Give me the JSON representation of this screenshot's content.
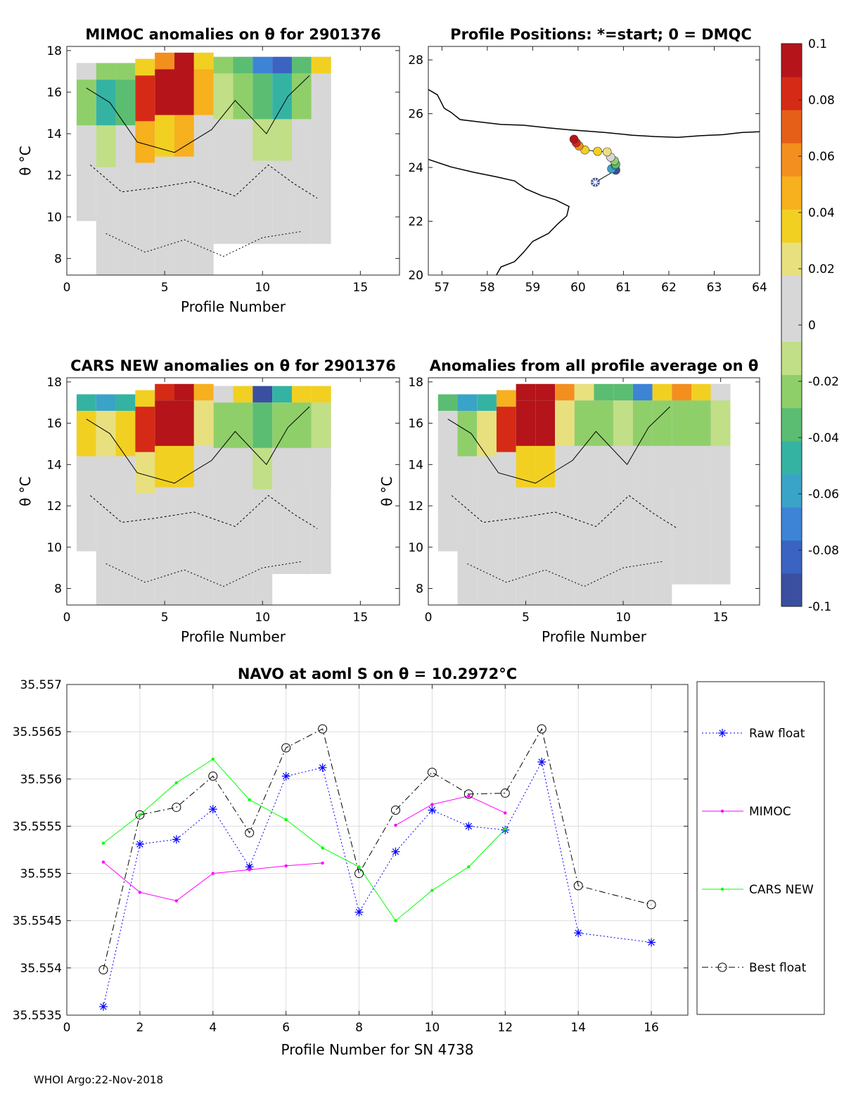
{
  "footer": "WHOI Argo:22-Nov-2018",
  "colorbar": {
    "colors": [
      "#3b4fa0",
      "#3a63c2",
      "#3d83d6",
      "#3aa3c8",
      "#34b3a3",
      "#5bbd72",
      "#8fcf6a",
      "#c1df86",
      "#d7d7d7",
      "#d7d7d7",
      "#e8e07e",
      "#f2d021",
      "#f7b01e",
      "#f38f1e",
      "#e65f18",
      "#d52b16",
      "#b4141a"
    ],
    "tick_labels": [
      "0.1",
      "0.08",
      "0.06",
      "0.04",
      "0.02",
      "0",
      "-0.02",
      "-0.04",
      "-0.06",
      "-0.08",
      "-0.1"
    ]
  },
  "chart_data": [
    {
      "type": "heatmap",
      "title": "MIMOC anomalies on θ  for 2901376",
      "xlabel": "Profile Number",
      "ylabel": "θ °C",
      "xlim": [
        0,
        17
      ],
      "ylim": [
        7.2,
        18.2
      ],
      "xticks": [
        "0",
        "5",
        "10",
        "15"
      ],
      "yticks": [
        "8",
        "10",
        "12",
        "14",
        "16",
        "18"
      ],
      "columns": [
        {
          "x": 1,
          "top": 17.4,
          "bottom": 9.8,
          "anom": [
            0.0,
            -0.02,
            0.0
          ]
        },
        {
          "x": 2,
          "top": 17.4,
          "bottom": 7.2,
          "anom": [
            -0.02,
            -0.05,
            -0.01
          ]
        },
        {
          "x": 3,
          "top": 17.4,
          "bottom": 7.2,
          "anom": [
            -0.02,
            -0.04,
            0.0
          ]
        },
        {
          "x": 4,
          "top": 17.6,
          "bottom": 7.2,
          "anom": [
            0.03,
            0.08,
            0.05
          ]
        },
        {
          "x": 5,
          "top": 17.9,
          "bottom": 7.2,
          "anom": [
            0.06,
            0.09,
            0.04
          ]
        },
        {
          "x": 6,
          "top": 17.9,
          "bottom": 7.2,
          "anom": [
            0.1,
            0.1,
            0.05
          ]
        },
        {
          "x": 7,
          "top": 17.9,
          "bottom": 7.2,
          "anom": [
            0.04,
            0.05,
            0.0
          ]
        },
        {
          "x": 8,
          "top": 17.7,
          "bottom": 8.7,
          "anom": [
            -0.02,
            -0.01,
            0.0
          ]
        },
        {
          "x": 9,
          "top": 17.7,
          "bottom": 8.7,
          "anom": [
            -0.03,
            -0.02,
            0.0
          ]
        },
        {
          "x": 10,
          "top": 17.7,
          "bottom": 8.7,
          "anom": [
            -0.07,
            -0.04,
            -0.01
          ]
        },
        {
          "x": 11,
          "top": 17.7,
          "bottom": 8.7,
          "anom": [
            -0.08,
            -0.05,
            -0.01
          ]
        },
        {
          "x": 12,
          "top": 17.7,
          "bottom": 8.7,
          "anom": [
            -0.04,
            -0.02,
            0.0
          ]
        },
        {
          "x": 13,
          "top": 17.7,
          "bottom": 8.7,
          "anom": [
            0.03,
            0.0,
            0.0
          ]
        }
      ]
    },
    {
      "type": "scatter",
      "title": "Profile Positions: *=start; 0 = DMQC",
      "xlim": [
        56.7,
        64
      ],
      "ylim": [
        20,
        28.5
      ],
      "xticks": [
        "57",
        "58",
        "59",
        "60",
        "61",
        "62",
        "63",
        "64"
      ],
      "yticks": [
        "20",
        "22",
        "24",
        "26",
        "28"
      ],
      "lon": [
        60.38,
        60.83,
        60.74,
        60.82,
        60.83,
        60.8,
        60.72,
        60.64,
        60.43,
        60.15,
        60.02,
        59.96,
        59.91
      ],
      "lat": [
        23.45,
        23.9,
        23.95,
        24.08,
        24.12,
        24.25,
        24.38,
        24.58,
        24.6,
        24.65,
        24.8,
        24.92,
        25.05
      ],
      "anom": [
        -0.1,
        -0.09,
        -0.06,
        -0.05,
        -0.03,
        -0.02,
        0.0,
        0.02,
        0.03,
        0.04,
        0.06,
        0.08,
        0.1
      ],
      "coast_north": [
        [
          56.7,
          26.9
        ],
        [
          56.9,
          26.7
        ],
        [
          57.05,
          26.2
        ],
        [
          57.2,
          26.05
        ],
        [
          57.4,
          25.78
        ],
        [
          57.8,
          25.7
        ],
        [
          58.3,
          25.6
        ],
        [
          58.8,
          25.57
        ],
        [
          59.3,
          25.48
        ],
        [
          59.8,
          25.4
        ],
        [
          60.2,
          25.35
        ],
        [
          60.6,
          25.3
        ],
        [
          61.2,
          25.2
        ],
        [
          61.7,
          25.15
        ],
        [
          62.2,
          25.12
        ],
        [
          62.7,
          25.18
        ],
        [
          63.2,
          25.22
        ],
        [
          63.6,
          25.3
        ],
        [
          64,
          25.33
        ]
      ],
      "coast_south": [
        [
          56.7,
          24.3
        ],
        [
          57.2,
          24.02
        ],
        [
          57.7,
          23.82
        ],
        [
          58.2,
          23.65
        ],
        [
          58.6,
          23.5
        ],
        [
          58.85,
          23.2
        ],
        [
          59.2,
          22.95
        ],
        [
          59.5,
          22.8
        ],
        [
          59.8,
          22.55
        ],
        [
          59.75,
          22.2
        ],
        [
          59.55,
          21.9
        ],
        [
          59.35,
          21.55
        ],
        [
          59.0,
          21.25
        ],
        [
          58.8,
          20.85
        ],
        [
          58.6,
          20.5
        ],
        [
          58.3,
          20.3
        ],
        [
          58.2,
          20.0
        ]
      ]
    },
    {
      "type": "heatmap",
      "title": "CARS NEW anomalies on θ for 2901376",
      "xlabel": "Profile Number",
      "ylabel": "θ °C",
      "xlim": [
        0,
        17
      ],
      "ylim": [
        7.2,
        18.2
      ],
      "xticks": [
        "0",
        "5",
        "10",
        "15"
      ],
      "yticks": [
        "8",
        "10",
        "12",
        "14",
        "16",
        "18"
      ],
      "columns": [
        {
          "x": 1,
          "top": 17.4,
          "bottom": 9.8,
          "anom": [
            -0.05,
            0.03,
            0.0
          ]
        },
        {
          "x": 2,
          "top": 17.4,
          "bottom": 7.2,
          "anom": [
            -0.06,
            0.02,
            0.0
          ]
        },
        {
          "x": 3,
          "top": 17.4,
          "bottom": 7.2,
          "anom": [
            -0.05,
            0.04,
            0.0
          ]
        },
        {
          "x": 4,
          "top": 17.6,
          "bottom": 7.2,
          "anom": [
            0.04,
            0.08,
            0.02
          ]
        },
        {
          "x": 5,
          "top": 17.9,
          "bottom": 7.2,
          "anom": [
            0.08,
            0.1,
            0.04
          ]
        },
        {
          "x": 6,
          "top": 17.9,
          "bottom": 7.2,
          "anom": [
            0.1,
            0.1,
            0.04
          ]
        },
        {
          "x": 7,
          "top": 17.9,
          "bottom": 7.2,
          "anom": [
            0.05,
            0.02,
            0.0
          ]
        },
        {
          "x": 8,
          "top": 17.8,
          "bottom": 7.2,
          "anom": [
            0.0,
            -0.02,
            0.0
          ]
        },
        {
          "x": 9,
          "top": 17.8,
          "bottom": 7.2,
          "anom": [
            0.04,
            -0.02,
            0.0
          ]
        },
        {
          "x": 10,
          "top": 17.8,
          "bottom": 7.2,
          "anom": [
            -0.09,
            -0.04,
            -0.01
          ]
        },
        {
          "x": 11,
          "top": 17.8,
          "bottom": 8.7,
          "anom": [
            -0.05,
            -0.02,
            0.0
          ]
        },
        {
          "x": 12,
          "top": 17.8,
          "bottom": 8.7,
          "anom": [
            0.04,
            -0.02,
            0.0
          ]
        },
        {
          "x": 13,
          "top": 17.8,
          "bottom": 8.7,
          "anom": [
            0.04,
            -0.01,
            0.0
          ]
        }
      ]
    },
    {
      "type": "heatmap",
      "title": "Anomalies from all profile average on θ",
      "xlabel": "Profile Number",
      "ylabel": "θ °C",
      "xlim": [
        0,
        17
      ],
      "ylim": [
        7.2,
        18.2
      ],
      "xticks": [
        "0",
        "5",
        "10",
        "15"
      ],
      "yticks": [
        "8",
        "10",
        "12",
        "14",
        "16",
        "18"
      ],
      "columns": [
        {
          "x": 1,
          "top": 17.4,
          "bottom": 9.8,
          "anom": [
            -0.03,
            0.01,
            0.0
          ]
        },
        {
          "x": 2,
          "top": 17.4,
          "bottom": 7.2,
          "anom": [
            -0.06,
            -0.02,
            0.0
          ]
        },
        {
          "x": 3,
          "top": 17.4,
          "bottom": 7.2,
          "anom": [
            -0.05,
            0.02,
            0.0
          ]
        },
        {
          "x": 4,
          "top": 17.6,
          "bottom": 7.2,
          "anom": [
            0.05,
            0.08,
            0.01
          ]
        },
        {
          "x": 5,
          "top": 17.9,
          "bottom": 7.2,
          "anom": [
            0.1,
            0.1,
            0.03
          ]
        },
        {
          "x": 6,
          "top": 17.9,
          "bottom": 7.2,
          "anom": [
            0.1,
            0.09,
            0.03
          ]
        },
        {
          "x": 7,
          "top": 17.9,
          "bottom": 7.2,
          "anom": [
            0.06,
            0.02,
            0.0
          ]
        },
        {
          "x": 8,
          "top": 17.9,
          "bottom": 7.2,
          "anom": [
            0.02,
            -0.02,
            0.0
          ]
        },
        {
          "x": 9,
          "top": 17.9,
          "bottom": 7.2,
          "anom": [
            -0.03,
            -0.02,
            0.0
          ]
        },
        {
          "x": 10,
          "top": 17.9,
          "bottom": 7.2,
          "anom": [
            -0.04,
            -0.01,
            0.0
          ]
        },
        {
          "x": 11,
          "top": 17.9,
          "bottom": 7.2,
          "anom": [
            -0.07,
            -0.02,
            0.0
          ]
        },
        {
          "x": 12,
          "top": 17.9,
          "bottom": 7.2,
          "anom": [
            0.04,
            -0.02,
            0.0
          ]
        },
        {
          "x": 13,
          "top": 17.9,
          "bottom": 8.2,
          "anom": [
            0.06,
            -0.02,
            0.0
          ]
        },
        {
          "x": 14,
          "top": 17.9,
          "bottom": 8.2,
          "anom": [
            0.03,
            -0.02,
            0.0
          ]
        },
        {
          "x": 15,
          "top": 17.9,
          "bottom": 8.2,
          "anom": [
            0.0,
            -0.01,
            0.0
          ]
        }
      ]
    },
    {
      "type": "line",
      "title": "NAVO at aoml S on θ = 10.2972°C",
      "xlabel": "Profile Number for SN 4738",
      "ylabel": "",
      "xlim": [
        0,
        17
      ],
      "ylim": [
        35.5535,
        35.557
      ],
      "xticks": [
        "0",
        "2",
        "4",
        "6",
        "8",
        "10",
        "12",
        "14",
        "16"
      ],
      "yticks": [
        "35.5535",
        "35.554",
        "35.5545",
        "35.555",
        "35.5555",
        "35.556",
        "35.5565",
        "35.557"
      ],
      "grid": true,
      "legend_position": "right",
      "series": [
        {
          "name": "Raw float",
          "color": "#0000ff",
          "marker": "asterisk",
          "dash": "dotted",
          "x": [
            1,
            2,
            3,
            4,
            5,
            6,
            7,
            8,
            9,
            10,
            11,
            12,
            13,
            14,
            16
          ],
          "values": [
            35.55359,
            35.55531,
            35.55536,
            35.55568,
            35.55507,
            35.55603,
            35.55612,
            35.55459,
            35.55523,
            35.55567,
            35.5555,
            35.55546,
            35.55618,
            35.55437,
            35.55427
          ]
        },
        {
          "name": "MIMOC",
          "color": "#ff00ff",
          "marker": "dot",
          "dash": "solid",
          "segments": [
            {
              "x": [
                1,
                2,
                3,
                4,
                5,
                6,
                7
              ],
              "values": [
                35.55512,
                35.5548,
                35.55471,
                35.555,
                35.55504,
                35.55508,
                35.55511
              ]
            },
            {
              "x": [
                9,
                10,
                11,
                12
              ],
              "values": [
                35.55551,
                35.55573,
                35.55582,
                35.55564
              ]
            }
          ]
        },
        {
          "name": "CARS NEW",
          "color": "#00ff00",
          "marker": "dot",
          "dash": "solid",
          "x": [
            1,
            2,
            3,
            4,
            5,
            6,
            7,
            8,
            9,
            10,
            11,
            12
          ],
          "values": [
            35.55532,
            35.55562,
            35.55596,
            35.55621,
            35.55578,
            35.55557,
            35.55527,
            35.55507,
            35.5545,
            35.55482,
            35.55507,
            35.55547
          ]
        },
        {
          "name": "Best float",
          "color": "#000000",
          "marker": "circle",
          "dash": "dashdot",
          "x": [
            1,
            2,
            3,
            4,
            5,
            6,
            7,
            8,
            9,
            10,
            11,
            12,
            13,
            14,
            16
          ],
          "values": [
            35.55398,
            35.55562,
            35.5557,
            35.55603,
            35.55543,
            35.55633,
            35.55653,
            35.555,
            35.55567,
            35.55607,
            35.55584,
            35.55585,
            35.55653,
            35.55487,
            35.55467
          ]
        }
      ]
    }
  ]
}
